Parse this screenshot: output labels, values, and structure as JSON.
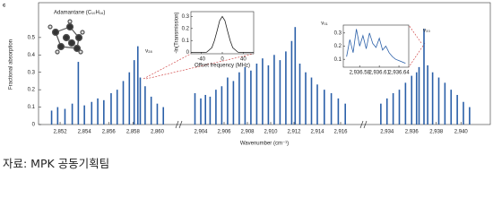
{
  "chart_data": [
    {
      "type": "stem",
      "panel_label": "c",
      "ylabel": "Fractional absorption",
      "xlabel": "Wavenumber (cm⁻¹)",
      "ylim": [
        0,
        0.7
      ],
      "yticks": [
        0,
        0.1,
        0.2,
        0.3,
        0.4,
        0.5
      ],
      "color": "#2a5fa8",
      "annotations": [
        "Adamantane (C₁₀H₁₆)",
        "ν₂₈",
        "ν₃₁",
        "ν₃₀"
      ],
      "segments": [
        {
          "xlim": [
            2851,
            2861
          ],
          "xticks": [
            {
              "value": 2852,
              "label": "2,852"
            },
            {
              "value": 2854,
              "label": "2,854"
            },
            {
              "value": 2856,
              "label": "2,856"
            },
            {
              "value": 2858,
              "label": "2,858"
            },
            {
              "value": 2860,
              "label": "2,860"
            }
          ],
          "x": [
            2851.3,
            2851.8,
            2852.4,
            2853.0,
            2853.5,
            2854.0,
            2854.6,
            2855.1,
            2855.6,
            2856.2,
            2856.7,
            2857.2,
            2857.7,
            2858.1,
            2858.4,
            2858.6,
            2859.0,
            2859.5,
            2860.0,
            2860.5
          ],
          "values": [
            0.08,
            0.1,
            0.09,
            0.12,
            0.36,
            0.11,
            0.13,
            0.15,
            0.14,
            0.18,
            0.2,
            0.25,
            0.3,
            0.37,
            0.45,
            0.27,
            0.22,
            0.16,
            0.12,
            0.1
          ]
        },
        {
          "xlim": [
            2903,
            2917
          ],
          "xticks": [
            {
              "value": 2904,
              "label": "2,904"
            },
            {
              "value": 2906,
              "label": "2,906"
            },
            {
              "value": 2908,
              "label": "2,908"
            },
            {
              "value": 2910,
              "label": "2,910"
            },
            {
              "value": 2912,
              "label": "2,912"
            },
            {
              "value": 2914,
              "label": "2,914"
            },
            {
              "value": 2916,
              "label": "2,916"
            }
          ],
          "x": [
            2903.5,
            2904.0,
            2904.4,
            2904.8,
            2905.3,
            2905.8,
            2906.3,
            2906.8,
            2907.3,
            2907.8,
            2908.3,
            2908.8,
            2909.3,
            2909.8,
            2910.3,
            2910.8,
            2911.3,
            2911.8,
            2912.1,
            2912.5,
            2913.0,
            2913.5,
            2914.0,
            2914.6,
            2915.2,
            2915.8,
            2916.4
          ],
          "values": [
            0.18,
            0.15,
            0.17,
            0.16,
            0.2,
            0.22,
            0.27,
            0.25,
            0.3,
            0.33,
            0.31,
            0.35,
            0.38,
            0.34,
            0.4,
            0.37,
            0.42,
            0.48,
            0.56,
            0.35,
            0.3,
            0.27,
            0.23,
            0.2,
            0.18,
            0.15,
            0.12
          ]
        },
        {
          "xlim": [
            2933,
            2941
          ],
          "xticks": [
            {
              "value": 2934,
              "label": "2,934"
            },
            {
              "value": 2936,
              "label": "2,936"
            },
            {
              "value": 2938,
              "label": "2,938"
            },
            {
              "value": 2940,
              "label": "2,940"
            }
          ],
          "x": [
            2933.5,
            2934.0,
            2934.5,
            2935.0,
            2935.5,
            2936.0,
            2936.4,
            2936.6,
            2937.0,
            2937.3,
            2937.7,
            2938.2,
            2938.7,
            2939.2,
            2939.7,
            2940.2,
            2940.7
          ],
          "values": [
            0.12,
            0.15,
            0.18,
            0.2,
            0.24,
            0.28,
            0.3,
            0.33,
            0.55,
            0.34,
            0.3,
            0.27,
            0.24,
            0.2,
            0.17,
            0.13,
            0.1
          ]
        }
      ]
    },
    {
      "type": "line",
      "ylabel": "-ln(Transmission)",
      "xlabel": "Offset frequency (MHz)",
      "color": "#222",
      "xlim": [
        -60,
        60
      ],
      "xticks": [
        -40,
        0,
        40
      ],
      "ylim": [
        -0.01,
        0.34
      ],
      "yticks": [
        0,
        0.1,
        0.2,
        0.3
      ],
      "x": [
        -60,
        -40,
        -30,
        -20,
        -15,
        -10,
        -5,
        0,
        5,
        10,
        15,
        20,
        30,
        40,
        60
      ],
      "values": [
        0,
        0,
        0.003,
        0.04,
        0.1,
        0.18,
        0.265,
        0.3,
        0.265,
        0.18,
        0.1,
        0.04,
        0.003,
        0,
        0
      ]
    },
    {
      "type": "line",
      "color": "#2a5fa8",
      "xlim": [
        2936.555,
        2936.655
      ],
      "xticks": [
        {
          "value": 2936.58,
          "label": "2,936.58"
        },
        {
          "value": 2936.61,
          "label": "2,936.61"
        },
        {
          "value": 2936.64,
          "label": "2,936.64"
        }
      ],
      "ylim": [
        0.04,
        0.36
      ],
      "yticks": [
        0.1,
        0.2,
        0.3
      ],
      "x": [
        2936.56,
        2936.565,
        2936.57,
        2936.575,
        2936.58,
        2936.585,
        2936.59,
        2936.595,
        2936.6,
        2936.605,
        2936.61,
        2936.615,
        2936.62,
        2936.625,
        2936.63,
        2936.635,
        2936.64,
        2936.645,
        2936.65
      ],
      "values": [
        0.12,
        0.25,
        0.15,
        0.33,
        0.2,
        0.28,
        0.18,
        0.3,
        0.22,
        0.19,
        0.26,
        0.17,
        0.2,
        0.15,
        0.12,
        0.1,
        0.09,
        0.08,
        0.07
      ]
    }
  ],
  "source": "자료: MPK 공동기획팀"
}
